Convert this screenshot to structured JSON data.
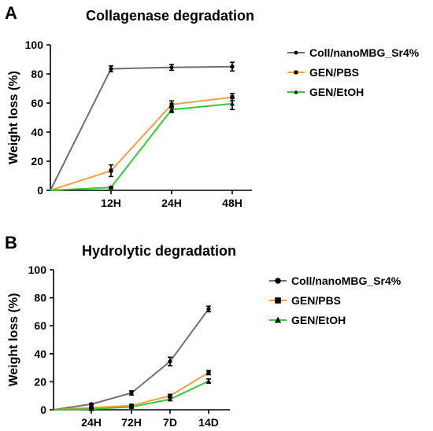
{
  "chart_data": [
    {
      "panel": "A",
      "type": "line",
      "title": "Collagenase degradation",
      "xlabel": "",
      "ylabel": "Weight loss (%)",
      "ylim": [
        0,
        100
      ],
      "yticks": [
        0,
        20,
        40,
        60,
        80,
        100
      ],
      "x": [
        "0",
        "12H",
        "24H",
        "48H"
      ],
      "xtick_labels": [
        "12H",
        "24H",
        "48H"
      ],
      "grid": false,
      "legend_position": "right",
      "series": [
        {
          "name": "Coll/nanoMBG_Sr4%",
          "color": "#707070",
          "marker": "circle",
          "values": [
            0,
            83.5,
            84.5,
            85
          ],
          "errors": [
            0,
            2,
            2,
            3
          ]
        },
        {
          "name": "GEN/PBS",
          "color": "#F0A040",
          "marker": "square",
          "values": [
            0,
            13.5,
            59,
            64
          ],
          "errors": [
            0,
            4,
            2.5,
            2.5
          ]
        },
        {
          "name": "GEN/EtOH",
          "color": "#33CC33",
          "marker": "triangle",
          "values": [
            0,
            2,
            55.5,
            59.5
          ],
          "errors": [
            0,
            0.5,
            2,
            4
          ]
        }
      ]
    },
    {
      "panel": "B",
      "type": "line",
      "title": "Hydrolytic degradation",
      "xlabel": "",
      "ylabel": "Weight loss (%)",
      "ylim": [
        0,
        100
      ],
      "yticks": [
        0,
        20,
        40,
        60,
        80,
        100
      ],
      "x": [
        "0",
        "24H",
        "72H",
        "7D",
        "14D"
      ],
      "xtick_labels": [
        "24H",
        "72H",
        "7D",
        "14D"
      ],
      "grid": false,
      "legend_position": "right",
      "series": [
        {
          "name": "Coll/nanoMBG_Sr4%",
          "color": "#707070",
          "marker": "circle",
          "values": [
            0,
            4,
            12,
            34.5,
            72
          ],
          "errors": [
            0,
            0.5,
            1.5,
            3,
            2
          ]
        },
        {
          "name": "GEN/PBS",
          "color": "#F0A040",
          "marker": "square",
          "values": [
            0,
            1.5,
            3,
            10,
            26.5
          ],
          "errors": [
            0,
            0.5,
            0.5,
            1,
            1.5
          ]
        },
        {
          "name": "GEN/EtOH",
          "color": "#33CC33",
          "marker": "triangle",
          "values": [
            0,
            0.5,
            2,
            7.5,
            20.5
          ],
          "errors": [
            0,
            0.5,
            0.5,
            1,
            1.5
          ]
        }
      ]
    }
  ]
}
